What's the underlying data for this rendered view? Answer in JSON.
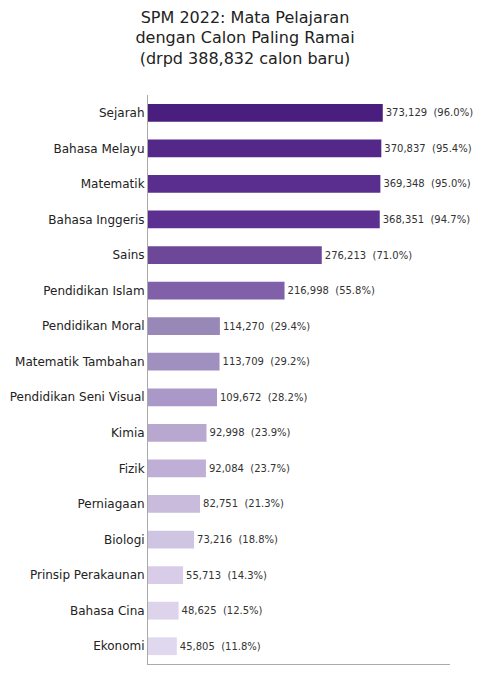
{
  "chart_data": {
    "type": "bar",
    "orientation": "horizontal",
    "title": "SPM 2022: Mata Pelajaran\ndengan Calon Paling Ramai\n(drpd 388,832 calon baru)",
    "categories": [
      "Ekonomi",
      "Bahasa Cina",
      "Prinsip Perakaunan",
      "Biologi",
      "Perniagaan",
      "Fizik",
      "Kimia",
      "Pendidikan Seni Visual",
      "Matematik Tambahan",
      "Pendidikan Moral",
      "Pendidikan Islam",
      "Sains",
      "Bahasa Inggeris",
      "Matematik",
      "Bahasa Melayu",
      "Sejarah"
    ],
    "values": [
      45805,
      48625,
      55713,
      73216,
      82751,
      92084,
      92998,
      109672,
      113709,
      114270,
      216998,
      276213,
      368351,
      369348,
      370837,
      373129
    ],
    "value_labels": [
      "45,805  (11.8%)",
      "48,625  (12.5%)",
      "55,713  (14.3%)",
      "73,216  (18.8%)",
      "82,751  (21.3%)",
      "92,084  (23.7%)",
      "92,998  (23.9%)",
      "109,672  (28.2%)",
      "113,709  (29.2%)",
      "114,270  (29.4%)",
      "216,998  (55.8%)",
      "276,213  (71.0%)",
      "368,351  (94.7%)",
      "369,348  (95.0%)",
      "370,837  (95.4%)",
      "373,129  (96.0%)"
    ],
    "colors": [
      "#e0d8ee",
      "#ddd4ec",
      "#d8cce8",
      "#cfc4e2",
      "#c8bbdc",
      "#bfafd6",
      "#b8a8d0",
      "#aa98c8",
      "#a090c0",
      "#9888b8",
      "#8060a8",
      "#6e4898",
      "#5c3090",
      "#5a2e8e",
      "#542888",
      "#4a1e7e"
    ],
    "xlim": [
      0,
      480000
    ],
    "data_labels": true,
    "tick_labels": "y",
    "grid": false
  }
}
